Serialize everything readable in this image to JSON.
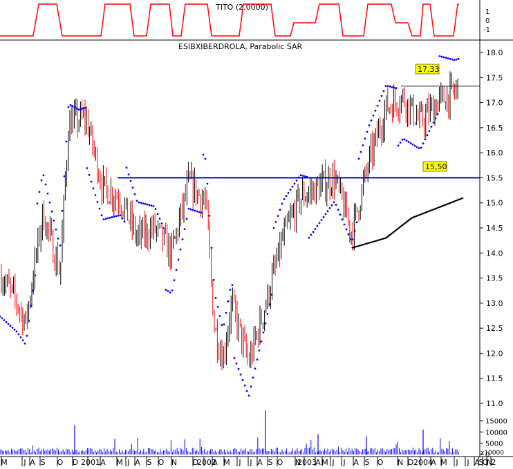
{
  "indicator_panel": {
    "label": "TITO (2.0000)",
    "y_ticks": [
      "1",
      "0",
      "-1"
    ]
  },
  "main_panel": {
    "title": "ESIBXIBERDROLA, Parabolic SAR",
    "y_ticks": [
      "18.0",
      "17.5",
      "17.0",
      "16.5",
      "16.0",
      "15.5",
      "15.0",
      "14.5",
      "14.0",
      "13.5",
      "13.0",
      "12.5",
      "12.0",
      "11.5",
      "11.0"
    ],
    "horizontal_line_1": {
      "label": "17,33",
      "value": 17.33
    },
    "horizontal_line_2": {
      "label": "15,50",
      "value": 15.5
    }
  },
  "volume_panel": {
    "y_ticks": [
      "15000",
      "10000",
      "5000",
      "0"
    ],
    "unit": "x10000"
  },
  "x_axis": {
    "labels": [
      "M",
      "J",
      "A",
      "S",
      "O",
      "D",
      "2001",
      "A",
      "M",
      "J",
      "A",
      "S",
      "O",
      "N",
      "D",
      "2002",
      "A",
      "M",
      "J",
      "J",
      "A",
      "S",
      "O",
      "N",
      "2003",
      "A",
      "M",
      "J",
      "J",
      "A",
      "S",
      "O",
      "N",
      "D",
      "2004",
      "A",
      "M",
      "J",
      "J",
      "A",
      "S",
      "O",
      "N",
      "2"
    ]
  },
  "colors": {
    "up_bar": "#000000",
    "down_bar": "#ff0000",
    "sar": "#0000ff",
    "hline": "#0000cc",
    "indicator": "#ff0000",
    "volume": "#0000ff",
    "label_bg": "#ffff00",
    "grid": "#000000"
  },
  "chart_data": {
    "type": "line",
    "title": "ESIBXIBERDROLA, Parabolic SAR",
    "x_start": "2000-05",
    "x_end": "2004-11",
    "ylim": [
      11.0,
      18.0
    ],
    "close_path_approx": [
      {
        "date": "2000-05",
        "value": 13.6
      },
      {
        "date": "2000-07",
        "value": 13.0
      },
      {
        "date": "2000-08",
        "value": 12.6
      },
      {
        "date": "2000-10",
        "value": 14.8
      },
      {
        "date": "2000-12",
        "value": 13.6
      },
      {
        "date": "2001-01",
        "value": 16.6
      },
      {
        "date": "2001-03",
        "value": 16.7
      },
      {
        "date": "2001-05",
        "value": 15.3
      },
      {
        "date": "2001-07",
        "value": 15.1
      },
      {
        "date": "2001-09",
        "value": 14.3
      },
      {
        "date": "2001-11",
        "value": 14.5
      },
      {
        "date": "2002-01",
        "value": 14.0
      },
      {
        "date": "2002-03",
        "value": 15.4
      },
      {
        "date": "2002-05",
        "value": 15.0
      },
      {
        "date": "2002-06",
        "value": 12.5
      },
      {
        "date": "2002-07",
        "value": 11.9
      },
      {
        "date": "2002-08",
        "value": 13.0
      },
      {
        "date": "2002-10",
        "value": 11.8
      },
      {
        "date": "2002-12",
        "value": 13.0
      },
      {
        "date": "2003-02",
        "value": 14.3
      },
      {
        "date": "2003-04",
        "value": 15.1
      },
      {
        "date": "2003-06",
        "value": 15.3
      },
      {
        "date": "2003-08",
        "value": 15.5
      },
      {
        "date": "2003-10",
        "value": 14.4
      },
      {
        "date": "2003-12",
        "value": 15.8
      },
      {
        "date": "2004-02",
        "value": 16.9
      },
      {
        "date": "2004-04",
        "value": 17.1
      },
      {
        "date": "2004-06",
        "value": 16.6
      },
      {
        "date": "2004-08",
        "value": 17.0
      },
      {
        "date": "2004-10",
        "value": 17.2
      },
      {
        "date": "2004-11",
        "value": 17.4
      }
    ],
    "moving_average_approx": [
      {
        "date": "2003-10",
        "value": 14.1
      },
      {
        "date": "2004-02",
        "value": 14.3
      },
      {
        "date": "2004-05",
        "value": 14.7
      },
      {
        "date": "2004-08",
        "value": 14.9
      },
      {
        "date": "2004-11",
        "value": 15.1
      }
    ],
    "horizontal_levels": [
      17.33,
      15.5
    ]
  }
}
